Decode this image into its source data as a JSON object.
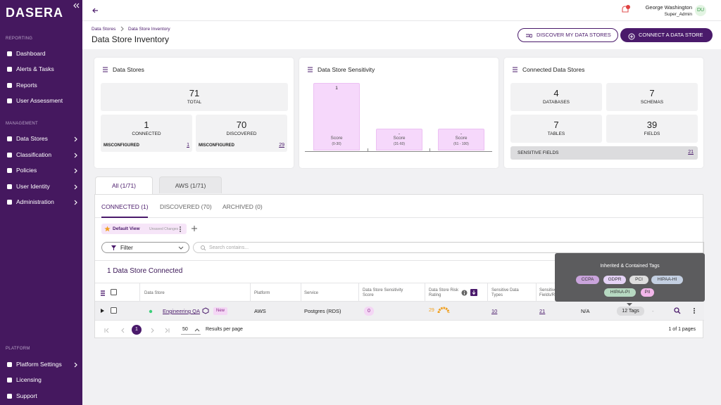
{
  "sidebar": {
    "logo": "DASERA",
    "sections": [
      {
        "title": "REPORTING",
        "items": [
          {
            "label": "Dashboard"
          },
          {
            "label": "Alerts & Tasks"
          },
          {
            "label": "Reports"
          },
          {
            "label": "User Assessment"
          }
        ]
      },
      {
        "title": "MANAGEMENT",
        "items": [
          {
            "label": "Data Stores",
            "submenu": true
          },
          {
            "label": "Classification",
            "submenu": true
          },
          {
            "label": "Policies",
            "submenu": true
          },
          {
            "label": "User Identity",
            "submenu": true
          },
          {
            "label": "Administration",
            "submenu": true
          }
        ]
      },
      {
        "title": "PLATFORM",
        "items": [
          {
            "label": "Platform Settings",
            "submenu": true
          },
          {
            "label": "Licensing"
          },
          {
            "label": "Support"
          }
        ]
      }
    ]
  },
  "topbar": {
    "user_name": "George Washington",
    "user_role": "Super_Admin",
    "initials": "DU"
  },
  "header": {
    "breadcrumbs": [
      "Data Stores",
      "Data Store Inventory"
    ],
    "title": "Data Store Inventory",
    "buttons": [
      "DISCOVER MY DATA STORES",
      "CONNECT A DATA STORE"
    ]
  },
  "cards": {
    "data_stores": {
      "title": "Data Stores",
      "total": {
        "value": 71,
        "label": "TOTAL"
      },
      "connected": {
        "value": 1,
        "label": "CONNECTED",
        "misconfigured_label": "MISCONFIGURED",
        "misconfigured": 1
      },
      "discovered": {
        "value": 70,
        "label": "DISCOVERED",
        "misconfigured_label": "MISCONFIGURED",
        "misconfigured": 29
      }
    },
    "sensitivity": {
      "title": "Data Store Sensitivity",
      "bars": [
        {
          "value": "1",
          "label": "Score",
          "range": "(0-30)"
        },
        {
          "value": "-",
          "label": "Score",
          "range": "(31-60)"
        },
        {
          "value": "-",
          "label": "Score",
          "range": "(61 - 100)"
        }
      ]
    },
    "connected": {
      "title": "Connected Data Stores",
      "stats": [
        {
          "value": 4,
          "label": "DATABASES"
        },
        {
          "value": 7,
          "label": "SCHEMAS"
        },
        {
          "value": 7,
          "label": "TABLES"
        },
        {
          "value": 39,
          "label": "FIELDS"
        }
      ],
      "sensitive_fields": {
        "label": "SENSITIVE FIELDS",
        "value": 21
      }
    }
  },
  "tabs": [
    "All (1/71)",
    "AWS (1/71)"
  ],
  "subtabs": [
    "CONNECTED (1)",
    "DISCOVERED (70)",
    "ARCHIVED (0)"
  ],
  "view": {
    "name": "Default View",
    "status": "Unsaved Changes"
  },
  "filter": "Filter",
  "search_placeholder": "Search contains...",
  "table": {
    "caption": "1 Data Store Connected",
    "columns": [
      "Data Store",
      "Platform",
      "Service",
      "Data Store Sensitivity Score",
      "Data Store Risk Rating",
      "Sensitive Data Types",
      "Sensitive Fields/Records"
    ],
    "row": {
      "name": "Engineering QA",
      "badge": "New",
      "platform": "AWS",
      "service": "Postgres (RDS)",
      "sensitivity_score": 0,
      "risk_rating": 29,
      "sensitive_data_types": 10,
      "sensitive_fields": 21,
      "extra": "N/A",
      "tags": "12 Tags",
      "dash": "-"
    }
  },
  "pagination": {
    "page": 1,
    "page_size": 50,
    "page_size_label": "Results per page",
    "summary": "1 of 1 pages"
  },
  "tooltip": {
    "title": "Inherited & Contained Tags",
    "tags": [
      "CCPA",
      "GDPR",
      "PCI",
      "HIPAA-HI",
      "HIPAA-PI",
      "PII"
    ]
  }
}
